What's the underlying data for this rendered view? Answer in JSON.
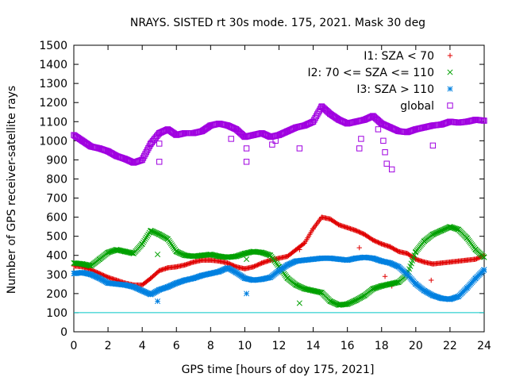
{
  "chart_data": {
    "type": "scatter",
    "title": "NRAYS. SISTED rt 30s mode. 175, 2021. Mask 30 deg",
    "xlabel": "GPS time [hours of doy 175, 2021]",
    "ylabel": "Number of GPS receiver-satellite rays",
    "xlim": [
      0,
      24
    ],
    "ylim": [
      0,
      1500
    ],
    "x_ticks": [
      0,
      2,
      4,
      6,
      8,
      10,
      12,
      14,
      16,
      18,
      20,
      22,
      24
    ],
    "y_ticks": [
      0,
      100,
      200,
      300,
      400,
      500,
      600,
      700,
      800,
      900,
      1000,
      1100,
      1200,
      1300,
      1400,
      1500
    ],
    "x_tick_labels": [
      "0",
      "2",
      "4",
      "6",
      "8",
      "10",
      "12",
      "14",
      "16",
      "18",
      "20",
      "22",
      "24"
    ],
    "y_tick_labels": [
      "0",
      "100",
      "200",
      "300",
      "400",
      "500",
      "600",
      "700",
      "800",
      "900",
      "1000",
      "1100",
      "1200",
      "1300",
      "1400",
      "1500"
    ],
    "legend_position": "top-right",
    "reference_line": {
      "y": 100,
      "color": "#00c8c8"
    },
    "series": [
      {
        "name": "I1: SZA < 70",
        "marker": "plus",
        "color": "#e00000",
        "x": [
          0,
          0.5,
          1,
          1.5,
          2,
          2.5,
          3,
          3.5,
          4,
          4.5,
          5,
          5.5,
          6,
          6.5,
          7,
          7.5,
          8,
          8.5,
          9,
          9.5,
          10,
          10.5,
          11,
          11.5,
          12,
          12.5,
          13,
          13.5,
          14,
          14.5,
          15,
          15.5,
          16,
          16.5,
          17,
          17.5,
          18,
          18.5,
          19,
          19.5,
          20,
          20.5,
          21,
          21.5,
          22,
          22.5,
          23,
          23.5,
          24
        ],
        "y": [
          345,
          340,
          325,
          305,
          285,
          270,
          255,
          245,
          245,
          280,
          320,
          335,
          340,
          350,
          365,
          375,
          375,
          370,
          360,
          340,
          330,
          340,
          360,
          375,
          385,
          395,
          430,
          465,
          540,
          600,
          590,
          560,
          545,
          530,
          510,
          480,
          460,
          445,
          420,
          410,
          380,
          365,
          355,
          360,
          365,
          370,
          375,
          380,
          400
        ],
        "outliers_x": [
          9.9,
          13.2,
          16.7,
          18.2,
          18.6,
          20.9
        ],
        "outliers_y": [
          290,
          430,
          440,
          290,
          240,
          270
        ]
      },
      {
        "name": "I2: 70 <= SZA <= 110",
        "marker": "cross",
        "color": "#00a000",
        "x": [
          0,
          0.5,
          1,
          1.5,
          2,
          2.5,
          3,
          3.5,
          4,
          4.5,
          5,
          5.5,
          6,
          6.5,
          7,
          7.5,
          8,
          8.5,
          9,
          9.5,
          10,
          10.5,
          11,
          11.5,
          12,
          12.5,
          13,
          13.5,
          14,
          14.5,
          15,
          15.5,
          16,
          16.5,
          17,
          17.5,
          18,
          18.5,
          19,
          19.5,
          20,
          20.5,
          21,
          21.5,
          22,
          22.5,
          23,
          23.5,
          24
        ],
        "y": [
          360,
          355,
          345,
          380,
          415,
          430,
          420,
          410,
          460,
          530,
          510,
          485,
          420,
          400,
          395,
          400,
          405,
          395,
          390,
          395,
          410,
          420,
          415,
          400,
          340,
          280,
          245,
          225,
          215,
          205,
          160,
          140,
          145,
          165,
          190,
          225,
          240,
          250,
          260,
          300,
          420,
          475,
          510,
          530,
          550,
          535,
          490,
          430,
          390
        ],
        "outliers_x": [
          4.9,
          10.1,
          13.2
        ],
        "outliers_y": [
          405,
          380,
          150
        ]
      },
      {
        "name": "I3: SZA > 110",
        "marker": "star",
        "color": "#0080e0",
        "x": [
          0,
          0.5,
          1,
          1.5,
          2,
          2.5,
          3,
          3.5,
          4,
          4.5,
          5,
          5.5,
          6,
          6.5,
          7,
          7.5,
          8,
          8.5,
          9,
          9.5,
          10,
          10.5,
          11,
          11.5,
          12,
          12.5,
          13,
          13.5,
          14,
          14.5,
          15,
          15.5,
          16,
          16.5,
          17,
          17.5,
          18,
          18.5,
          19,
          19.5,
          20,
          20.5,
          21,
          21.5,
          22,
          22.5,
          23,
          23.5,
          24
        ],
        "y": [
          305,
          310,
          300,
          280,
          255,
          250,
          245,
          235,
          215,
          195,
          220,
          235,
          255,
          270,
          280,
          295,
          305,
          315,
          335,
          310,
          280,
          270,
          275,
          285,
          320,
          350,
          370,
          375,
          380,
          385,
          385,
          380,
          375,
          385,
          390,
          385,
          370,
          360,
          340,
          300,
          250,
          215,
          190,
          175,
          170,
          185,
          230,
          280,
          325
        ],
        "outliers_x": [
          4.9,
          10.1
        ],
        "outliers_y": [
          160,
          200
        ]
      },
      {
        "name": "global",
        "marker": "square",
        "color": "#a000e0",
        "x": [
          0,
          0.5,
          1,
          1.5,
          2,
          2.5,
          3,
          3.5,
          4,
          4.5,
          5,
          5.5,
          6,
          6.5,
          7,
          7.5,
          8,
          8.5,
          9,
          9.5,
          10,
          10.5,
          11,
          11.5,
          12,
          12.5,
          13,
          13.5,
          14,
          14.5,
          15,
          15.5,
          16,
          16.5,
          17,
          17.5,
          18,
          18.5,
          19,
          19.5,
          20,
          20.5,
          21,
          21.5,
          22,
          22.5,
          23,
          23.5,
          24
        ],
        "y": [
          1030,
          1000,
          970,
          960,
          945,
          920,
          905,
          885,
          900,
          985,
          1040,
          1060,
          1030,
          1040,
          1040,
          1050,
          1080,
          1090,
          1080,
          1060,
          1020,
          1030,
          1040,
          1020,
          1030,
          1050,
          1070,
          1080,
          1100,
          1180,
          1140,
          1110,
          1090,
          1100,
          1110,
          1130,
          1090,
          1070,
          1050,
          1045,
          1060,
          1070,
          1080,
          1085,
          1100,
          1095,
          1100,
          1110,
          1105
        ],
        "outliers_x": [
          5,
          5,
          9.2,
          10.1,
          10.1,
          11.6,
          11.8,
          13.2,
          16.7,
          16.8,
          17.8,
          18.1,
          18.2,
          18.3,
          18.6,
          21
        ],
        "outliers_y": [
          985,
          890,
          1010,
          960,
          890,
          980,
          1000,
          960,
          960,
          1010,
          1060,
          1000,
          940,
          880,
          850,
          975
        ]
      }
    ]
  }
}
